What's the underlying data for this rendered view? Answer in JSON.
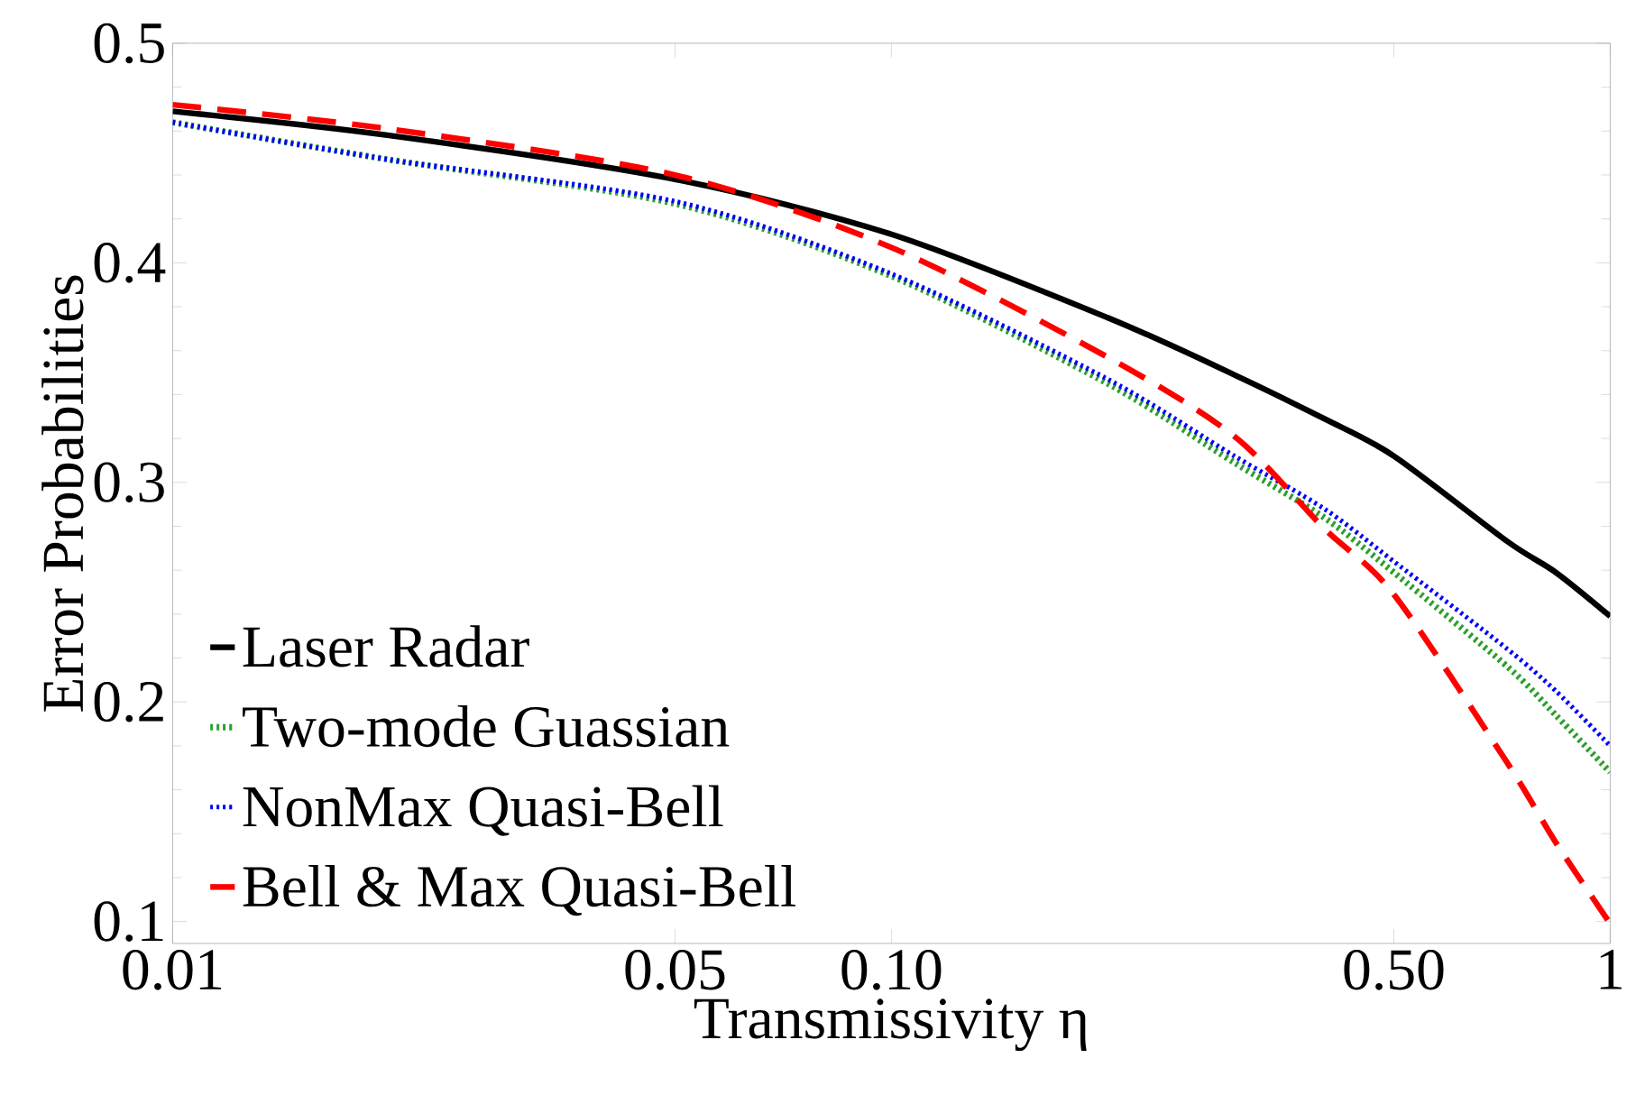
{
  "chart_data": {
    "type": "line",
    "xlabel": "Transmissivity η",
    "ylabel": "Error Probabilities",
    "x": [
      0.01,
      0.02,
      0.05,
      0.1,
      0.2,
      0.3,
      0.4,
      0.5,
      0.72,
      0.84,
      1
    ],
    "series": [
      {
        "name": "Laser Radar",
        "color": "#000000",
        "line_style": "solid",
        "values": [
          0.469,
          0.458,
          0.438,
          0.413,
          0.375,
          0.349,
          0.329,
          0.312,
          0.273,
          0.259,
          0.239
        ]
      },
      {
        "name": "Two-mode Guassian",
        "color": "#2ca02c",
        "line_style": "dotted",
        "values": [
          0.464,
          0.447,
          0.427,
          0.394,
          0.345,
          0.309,
          0.284,
          0.259,
          0.216,
          0.194,
          0.168
        ]
      },
      {
        "name": "NonMax Quasi-Bell",
        "color": "#0000ff",
        "line_style": "dotted",
        "values": [
          0.464,
          0.447,
          0.428,
          0.395,
          0.347,
          0.312,
          0.288,
          0.264,
          0.224,
          0.205,
          0.18
        ]
      },
      {
        "name": "Bell & Max Quasi-Bell",
        "color": "#ff0000",
        "line_style": "dashed",
        "values": [
          0.472,
          0.461,
          0.44,
          0.407,
          0.357,
          0.321,
          0.279,
          0.249,
          0.172,
          0.136,
          0.099
        ]
      }
    ],
    "log": "x",
    "xlim": [
      0.01,
      1
    ],
    "ylim": [
      0.09,
      0.5
    ],
    "xticks": [
      0.01,
      0.05,
      {
        "value": 0.1,
        "label": "0.10"
      },
      {
        "value": 0.5,
        "label": "0.50"
      },
      1
    ],
    "yticks": [
      0.1,
      0.2,
      0.3,
      0.4,
      0.5
    ],
    "legend": "bottom left",
    "marker": "none"
  }
}
